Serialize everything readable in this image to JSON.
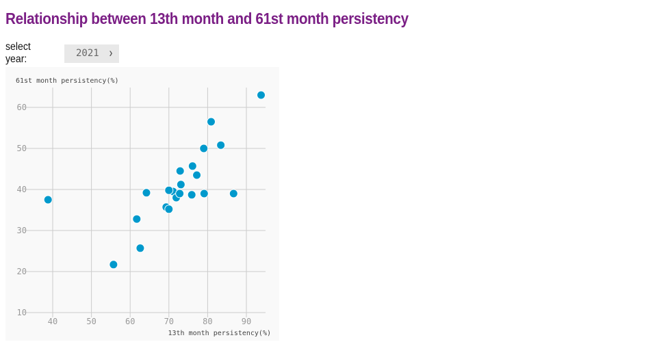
{
  "page": {
    "title": "Relationship between 13th month and 61st month persistency",
    "select_label": "select year:",
    "year_select": {
      "value": "2021",
      "icon": "chevron-down-icon"
    }
  },
  "colors": {
    "title": "#7b1f85",
    "point": "#0099cc"
  },
  "chart_data": {
    "type": "scatter",
    "title": "Relationship between 13th month and 61st month persistency",
    "xlabel": "13th month persistency(%)",
    "ylabel": "61st month persistency(%)",
    "xlim": [
      34,
      96
    ],
    "ylim": [
      8,
      65
    ],
    "xticks": [
      40,
      50,
      60,
      70,
      80,
      90
    ],
    "yticks": [
      10,
      20,
      30,
      40,
      50,
      60
    ],
    "grid": true,
    "legend": "none",
    "points": [
      {
        "x": 38.8,
        "y": 37.5
      },
      {
        "x": 55.7,
        "y": 21.7
      },
      {
        "x": 61.7,
        "y": 32.8
      },
      {
        "x": 62.6,
        "y": 25.7
      },
      {
        "x": 64.2,
        "y": 39.2
      },
      {
        "x": 69.3,
        "y": 35.7
      },
      {
        "x": 70.0,
        "y": 35.2
      },
      {
        "x": 71.1,
        "y": 39.5
      },
      {
        "x": 70.0,
        "y": 39.8
      },
      {
        "x": 71.9,
        "y": 38.0
      },
      {
        "x": 72.8,
        "y": 39.0
      },
      {
        "x": 73.1,
        "y": 41.2
      },
      {
        "x": 72.9,
        "y": 44.5
      },
      {
        "x": 75.9,
        "y": 38.7
      },
      {
        "x": 76.1,
        "y": 45.7
      },
      {
        "x": 77.2,
        "y": 43.5
      },
      {
        "x": 79.1,
        "y": 39.0
      },
      {
        "x": 79.0,
        "y": 50.0
      },
      {
        "x": 80.9,
        "y": 56.5
      },
      {
        "x": 83.4,
        "y": 50.8
      },
      {
        "x": 86.7,
        "y": 39.0
      },
      {
        "x": 93.8,
        "y": 63.0
      }
    ]
  }
}
